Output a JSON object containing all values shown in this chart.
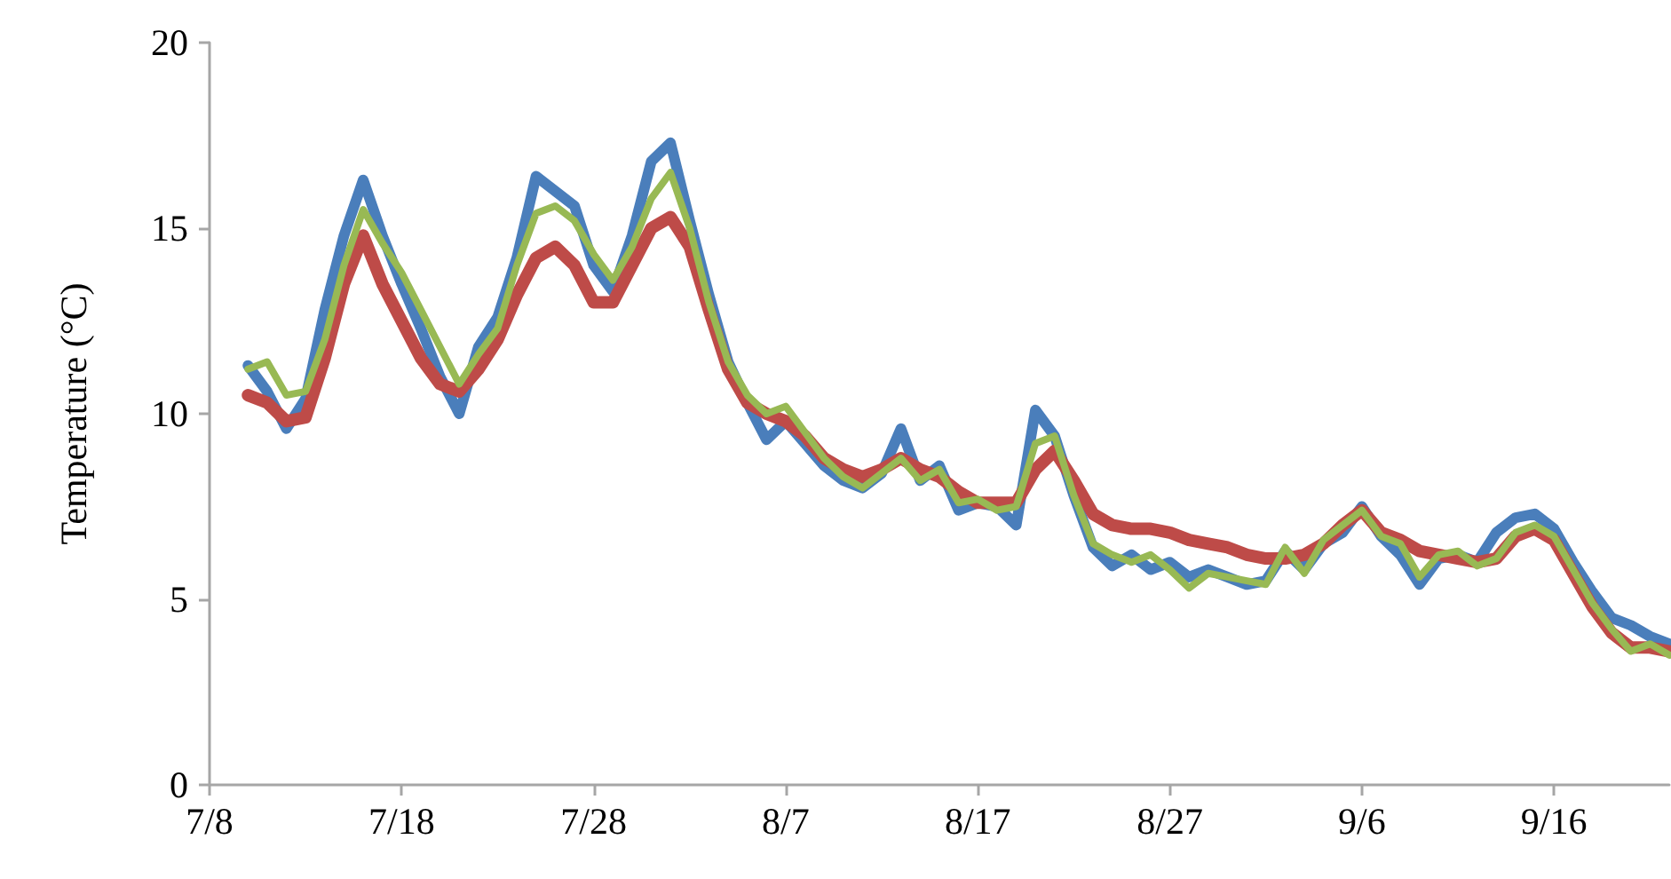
{
  "chart_data": {
    "type": "line",
    "ylabel": "Temperature (°C)",
    "x": [
      "--07-10",
      "--07-11",
      "--07-12",
      "--07-13",
      "--07-14",
      "--07-15",
      "--07-16",
      "--07-17",
      "--07-18",
      "--07-19",
      "--07-20",
      "--07-21",
      "--07-22",
      "--07-23",
      "--07-24",
      "--07-25",
      "--07-26",
      "--07-27",
      "--07-28",
      "--07-29",
      "--07-30",
      "--07-31",
      "--08-01",
      "--08-02",
      "--08-03",
      "--08-04",
      "--08-05",
      "--08-06",
      "--08-07",
      "--08-08",
      "--08-09",
      "--08-10",
      "--08-11",
      "--08-12",
      "--08-13",
      "--08-14",
      "--08-15",
      "--08-16",
      "--08-17",
      "--08-18",
      "--08-19",
      "--08-20",
      "--08-21",
      "--08-22",
      "--08-23",
      "--08-24",
      "--08-25",
      "--08-26",
      "--08-27",
      "--08-28",
      "--08-29",
      "--08-30",
      "--08-31",
      "--09-01",
      "--09-02",
      "--09-03",
      "--09-04",
      "--09-05",
      "--09-06",
      "--09-07",
      "--09-08",
      "--09-09",
      "--09-10",
      "--09-11",
      "--09-12",
      "--09-13",
      "--09-14",
      "--09-15",
      "--09-16",
      "--09-17",
      "--09-18",
      "--09-19",
      "--09-20",
      "--09-21",
      "--09-22"
    ],
    "series": [
      {
        "color": "#4a7ebb",
        "values": [
          11.3,
          10.6,
          9.6,
          10.4,
          12.8,
          14.8,
          16.3,
          14.8,
          13.5,
          12.3,
          11.0,
          10.0,
          11.8,
          12.6,
          14.2,
          16.4,
          16.0,
          15.6,
          14.0,
          13.3,
          14.8,
          16.8,
          17.3,
          15.2,
          13.2,
          11.4,
          10.3,
          9.3,
          9.8,
          9.2,
          8.6,
          8.2,
          8.0,
          8.4,
          9.6,
          8.2,
          8.6,
          7.4,
          7.6,
          7.5,
          7.0,
          10.1,
          9.4,
          7.8,
          6.4,
          5.9,
          6.2,
          5.8,
          6.0,
          5.6,
          5.8,
          5.6,
          5.4,
          5.5,
          6.3,
          5.8,
          6.5,
          6.8,
          7.5,
          6.7,
          6.2,
          5.4,
          6.1,
          6.2,
          6.0,
          6.8,
          7.2,
          7.3,
          6.9,
          6.0,
          5.2,
          4.5,
          4.3,
          4.0,
          3.8
        ]
      },
      {
        "color": "#be4b48",
        "values": [
          10.5,
          10.3,
          9.8,
          9.9,
          11.5,
          13.5,
          14.8,
          13.5,
          12.5,
          11.5,
          10.8,
          10.6,
          11.2,
          12.0,
          13.2,
          14.2,
          14.5,
          14.0,
          13.0,
          13.0,
          14.0,
          15.0,
          15.3,
          14.5,
          12.8,
          11.2,
          10.3,
          10.0,
          9.8,
          9.4,
          8.8,
          8.5,
          8.3,
          8.5,
          8.8,
          8.5,
          8.3,
          7.9,
          7.6,
          7.6,
          7.6,
          8.5,
          9.0,
          8.2,
          7.3,
          7.0,
          6.9,
          6.9,
          6.8,
          6.6,
          6.5,
          6.4,
          6.2,
          6.1,
          6.1,
          6.2,
          6.5,
          7.0,
          7.4,
          6.8,
          6.6,
          6.3,
          6.2,
          6.1,
          6.0,
          6.1,
          6.7,
          6.9,
          6.6,
          5.7,
          4.8,
          4.1,
          3.7,
          3.7,
          3.6
        ]
      },
      {
        "color": "#98b954",
        "values": [
          11.2,
          11.4,
          10.5,
          10.6,
          12.0,
          14.0,
          15.5,
          14.6,
          13.8,
          12.8,
          11.8,
          10.8,
          11.6,
          12.3,
          14.0,
          15.4,
          15.6,
          15.2,
          14.3,
          13.6,
          14.5,
          15.8,
          16.5,
          15.0,
          13.0,
          11.4,
          10.5,
          10.0,
          10.2,
          9.5,
          8.8,
          8.3,
          8.0,
          8.4,
          8.8,
          8.2,
          8.5,
          7.6,
          7.7,
          7.4,
          7.5,
          9.2,
          9.4,
          7.8,
          6.5,
          6.2,
          6.0,
          6.2,
          5.8,
          5.3,
          5.7,
          5.6,
          5.5,
          5.4,
          6.4,
          5.7,
          6.6,
          7.0,
          7.4,
          6.7,
          6.5,
          5.6,
          6.2,
          6.3,
          5.9,
          6.1,
          6.8,
          7.0,
          6.7,
          5.8,
          4.9,
          4.2,
          3.6,
          3.8,
          3.5
        ]
      }
    ],
    "xlim": [
      "--07-08",
      "--09-22"
    ],
    "xticks": [
      {
        "value": "--07-08",
        "label": "7/8"
      },
      {
        "value": "--07-18",
        "label": "7/18"
      },
      {
        "value": "--07-28",
        "label": "7/28"
      },
      {
        "value": "--08-07",
        "label": "8/7"
      },
      {
        "value": "--08-17",
        "label": "8/17"
      },
      {
        "value": "--08-27",
        "label": "8/27"
      },
      {
        "value": "--09-06",
        "label": "9/6"
      },
      {
        "value": "--09-16",
        "label": "9/16"
      }
    ],
    "ylim": [
      0,
      20
    ],
    "yticks": [
      0,
      5,
      10,
      15,
      20
    ],
    "grid": false,
    "marker": "none",
    "line_style": "solid"
  }
}
